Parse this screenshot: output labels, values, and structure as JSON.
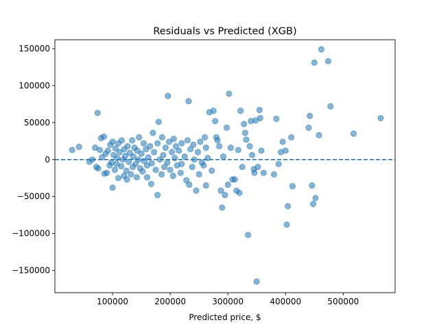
{
  "chart_data": {
    "type": "scatter",
    "title": "Residuals vs Predicted (XGB)",
    "xlabel": "Predicted price, $",
    "ylabel": "",
    "xlim": [
      0,
      590000
    ],
    "ylim": [
      -180000,
      162000
    ],
    "xticks": [
      100000,
      200000,
      300000,
      400000,
      500000
    ],
    "yticks": [
      -150000,
      -100000,
      -50000,
      0,
      50000,
      100000,
      150000
    ],
    "grid": false,
    "reference_line": {
      "y": 0,
      "style": "dashed"
    },
    "series": [
      {
        "color": "#1f77b4",
        "alpha": 0.55,
        "points": [
          [
            30000,
            13000
          ],
          [
            42000,
            17000
          ],
          [
            60000,
            -3000
          ],
          [
            65000,
            0
          ],
          [
            70000,
            16000
          ],
          [
            72000,
            -10000
          ],
          [
            74000,
            63000
          ],
          [
            75000,
            -12000
          ],
          [
            78000,
            13000
          ],
          [
            80000,
            29000
          ],
          [
            82000,
            3000
          ],
          [
            85000,
            31000
          ],
          [
            86000,
            -19000
          ],
          [
            88000,
            8000
          ],
          [
            90000,
            -18000
          ],
          [
            92000,
            12000
          ],
          [
            95000,
            -8000
          ],
          [
            96000,
            20000
          ],
          [
            98000,
            -4000
          ],
          [
            100000,
            24000
          ],
          [
            100000,
            -38000
          ],
          [
            102000,
            6000
          ],
          [
            104000,
            -14000
          ],
          [
            105000,
            15000
          ],
          [
            107000,
            -6000
          ],
          [
            108000,
            2000
          ],
          [
            110000,
            22000
          ],
          [
            110000,
            -25000
          ],
          [
            112000,
            10000
          ],
          [
            115000,
            -9000
          ],
          [
            116000,
            26000
          ],
          [
            118000,
            0
          ],
          [
            120000,
            -22000
          ],
          [
            120000,
            14000
          ],
          [
            122000,
            5000
          ],
          [
            124000,
            -15000
          ],
          [
            125000,
            -27000
          ],
          [
            126000,
            18000
          ],
          [
            128000,
            -3000
          ],
          [
            130000,
            9000
          ],
          [
            132000,
            -20000
          ],
          [
            134000,
            26000
          ],
          [
            135000,
            -10000
          ],
          [
            136000,
            4000
          ],
          [
            138000,
            16000
          ],
          [
            140000,
            -6000
          ],
          [
            142000,
            -24000
          ],
          [
            143000,
            12000
          ],
          [
            145000,
            0
          ],
          [
            146000,
            30000
          ],
          [
            148000,
            -12000
          ],
          [
            150000,
            8000
          ],
          [
            152000,
            -16000
          ],
          [
            154000,
            22000
          ],
          [
            155000,
            -2000
          ],
          [
            158000,
            14000
          ],
          [
            160000,
            -8000
          ],
          [
            160000,
            -24000
          ],
          [
            162000,
            3000
          ],
          [
            165000,
            18000
          ],
          [
            167000,
            -33000
          ],
          [
            168000,
            -5000
          ],
          [
            170000,
            36000
          ],
          [
            172000,
            10000
          ],
          [
            175000,
            -14000
          ],
          [
            178000,
            22000
          ],
          [
            178000,
            -48000
          ],
          [
            180000,
            51000
          ],
          [
            182000,
            0
          ],
          [
            185000,
            -20000
          ],
          [
            186000,
            30000
          ],
          [
            188000,
            6000
          ],
          [
            190000,
            -10000
          ],
          [
            192000,
            16000
          ],
          [
            195000,
            -4000
          ],
          [
            196000,
            86000
          ],
          [
            198000,
            24000
          ],
          [
            200000,
            -14000
          ],
          [
            203000,
            10000
          ],
          [
            205000,
            -22000
          ],
          [
            206000,
            28000
          ],
          [
            208000,
            2000
          ],
          [
            210000,
            18000
          ],
          [
            212000,
            -8000
          ],
          [
            215000,
            12000
          ],
          [
            218000,
            -18000
          ],
          [
            220000,
            22000
          ],
          [
            220000,
            -6000
          ],
          [
            225000,
            4000
          ],
          [
            228000,
            -28000
          ],
          [
            230000,
            26000
          ],
          [
            232000,
            79000
          ],
          [
            233000,
            -34000
          ],
          [
            235000,
            14000
          ],
          [
            238000,
            -10000
          ],
          [
            240000,
            20000
          ],
          [
            242000,
            0
          ],
          [
            245000,
            -42000
          ],
          [
            248000,
            10000
          ],
          [
            250000,
            -20000
          ],
          [
            252000,
            24000
          ],
          [
            255000,
            -4000
          ],
          [
            258000,
            -8000
          ],
          [
            260000,
            30000
          ],
          [
            262000,
            -35000
          ],
          [
            262000,
            16000
          ],
          [
            265000,
            2000
          ],
          [
            268000,
            64000
          ],
          [
            272000,
            -15000
          ],
          [
            275000,
            66000
          ],
          [
            278000,
            52000
          ],
          [
            280000,
            30000
          ],
          [
            282000,
            26000
          ],
          [
            285000,
            18000
          ],
          [
            288000,
            -42000
          ],
          [
            290000,
            -65000
          ],
          [
            292000,
            4000
          ],
          [
            295000,
            -48000
          ],
          [
            298000,
            43000
          ],
          [
            300000,
            -34000
          ],
          [
            302000,
            89000
          ],
          [
            305000,
            16000
          ],
          [
            308000,
            -27000
          ],
          [
            312000,
            -27000
          ],
          [
            315000,
            -42000
          ],
          [
            318000,
            13000
          ],
          [
            320000,
            -45000
          ],
          [
            322000,
            66000
          ],
          [
            325000,
            -10000
          ],
          [
            328000,
            48000
          ],
          [
            330000,
            36000
          ],
          [
            332000,
            27000
          ],
          [
            335000,
            -102000
          ],
          [
            338000,
            18000
          ],
          [
            340000,
            52000
          ],
          [
            342000,
            6000
          ],
          [
            345000,
            -13000
          ],
          [
            346000,
            -18000
          ],
          [
            348000,
            53000
          ],
          [
            350000,
            -165000
          ],
          [
            352000,
            -10000
          ],
          [
            355000,
            67000
          ],
          [
            356000,
            56000
          ],
          [
            358000,
            12000
          ],
          [
            362000,
            -18000
          ],
          [
            380000,
            -20000
          ],
          [
            384000,
            55000
          ],
          [
            388000,
            -6000
          ],
          [
            392000,
            10000
          ],
          [
            395000,
            24000
          ],
          [
            400000,
            12000
          ],
          [
            402000,
            -88000
          ],
          [
            404000,
            -63000
          ],
          [
            410000,
            30000
          ],
          [
            412000,
            -36000
          ],
          [
            440000,
            43000
          ],
          [
            442000,
            59000
          ],
          [
            446000,
            -35000
          ],
          [
            448000,
            -60000
          ],
          [
            450000,
            131000
          ],
          [
            452000,
            -52000
          ],
          [
            458000,
            33000
          ],
          [
            462000,
            149000
          ],
          [
            474000,
            133000
          ],
          [
            478000,
            72000
          ],
          [
            518000,
            35000
          ],
          [
            565000,
            56000
          ]
        ]
      }
    ]
  }
}
